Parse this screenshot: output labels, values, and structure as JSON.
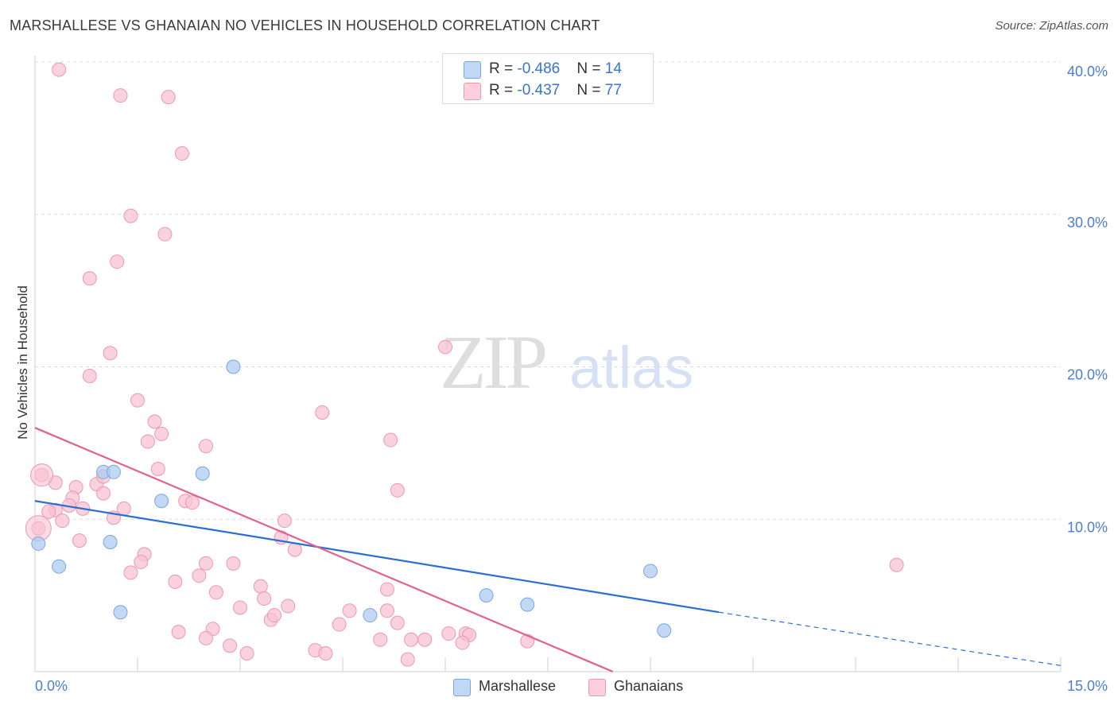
{
  "title": "MARSHALLESE VS GHANAIAN NO VEHICLES IN HOUSEHOLD CORRELATION CHART",
  "source": "Source: ZipAtlas.com",
  "watermark": {
    "zip": "ZIP",
    "atlas": "atlas"
  },
  "colors": {
    "marshallese_fill": "#aecbf2",
    "marshallese_stroke": "#7aa6e0",
    "marshallese_line": "#2a6fd0",
    "ghanaian_fill": "#f8c3d2",
    "ghanaian_stroke": "#ec98b2",
    "ghanaian_line": "#e0628e",
    "tick_text": "#4a7fd0",
    "grid": "#dddddd"
  },
  "legend": {
    "rows": [
      {
        "r_label": "R = ",
        "r_value": "-0.486",
        "n_label": "N = ",
        "n_value": "14"
      },
      {
        "r_label": "R = ",
        "r_value": "-0.437",
        "n_label": "N = ",
        "n_value": "77"
      }
    ]
  },
  "bottom_legend": {
    "marshallese": "Marshallese",
    "ghanaians": "Ghanaians"
  },
  "chart_data": {
    "type": "scatter",
    "title": "MARSHALLESE VS GHANAIAN NO VEHICLES IN HOUSEHOLD CORRELATION CHART",
    "xlabel": "",
    "ylabel": "No Vehicles in Household",
    "xlim": [
      0,
      15
    ],
    "ylim": [
      0,
      40
    ],
    "x_tick_labels": [
      "0.0%",
      "15.0%"
    ],
    "y_ticks": [
      10,
      20,
      30,
      40
    ],
    "y_tick_labels": [
      "10.0%",
      "20.0%",
      "30.0%",
      "40.0%"
    ],
    "grid": true,
    "series": [
      {
        "name": "Marshallese",
        "points": [
          [
            0.05,
            8.4
          ],
          [
            0.35,
            6.9
          ],
          [
            1.0,
            13.1
          ],
          [
            1.15,
            13.1
          ],
          [
            1.1,
            8.5
          ],
          [
            1.25,
            3.9
          ],
          [
            1.85,
            11.2
          ],
          [
            2.45,
            13.0
          ],
          [
            2.9,
            20.0
          ],
          [
            4.9,
            3.7
          ],
          [
            6.6,
            5.0
          ],
          [
            7.2,
            4.4
          ],
          [
            9.0,
            6.6
          ],
          [
            9.2,
            2.7
          ]
        ],
        "trend": {
          "x0": 0.0,
          "y0": 11.2,
          "x1": 10.0,
          "y1": 3.9,
          "dash_to_x": 15.0,
          "dash_to_y": 0.4
        }
      },
      {
        "name": "Ghanaians",
        "points": [
          [
            0.35,
            39.5
          ],
          [
            1.25,
            37.8
          ],
          [
            1.95,
            37.7
          ],
          [
            2.15,
            34.0
          ],
          [
            1.4,
            29.9
          ],
          [
            1.9,
            28.7
          ],
          [
            1.2,
            26.9
          ],
          [
            0.8,
            25.8
          ],
          [
            1.1,
            20.9
          ],
          [
            0.8,
            19.4
          ],
          [
            1.5,
            17.8
          ],
          [
            6.0,
            21.3
          ],
          [
            4.2,
            17.0
          ],
          [
            1.75,
            16.4
          ],
          [
            1.85,
            15.6
          ],
          [
            1.65,
            15.1
          ],
          [
            5.2,
            15.2
          ],
          [
            2.5,
            14.8
          ],
          [
            1.8,
            13.3
          ],
          [
            0.1,
            12.9
          ],
          [
            0.3,
            12.4
          ],
          [
            0.6,
            12.1
          ],
          [
            0.9,
            12.3
          ],
          [
            1.0,
            12.8
          ],
          [
            1.0,
            11.7
          ],
          [
            0.55,
            11.4
          ],
          [
            0.5,
            10.9
          ],
          [
            0.3,
            10.6
          ],
          [
            0.2,
            10.5
          ],
          [
            0.7,
            10.7
          ],
          [
            1.3,
            10.7
          ],
          [
            2.2,
            11.2
          ],
          [
            2.3,
            11.1
          ],
          [
            1.15,
            10.1
          ],
          [
            0.4,
            9.9
          ],
          [
            0.05,
            9.4
          ],
          [
            3.65,
            9.9
          ],
          [
            5.3,
            11.9
          ],
          [
            3.6,
            8.8
          ],
          [
            0.65,
            8.6
          ],
          [
            3.8,
            8.0
          ],
          [
            1.6,
            7.7
          ],
          [
            1.55,
            7.2
          ],
          [
            2.5,
            7.1
          ],
          [
            2.9,
            7.1
          ],
          [
            1.4,
            6.5
          ],
          [
            2.4,
            6.3
          ],
          [
            2.05,
            5.9
          ],
          [
            3.3,
            5.6
          ],
          [
            5.15,
            5.4
          ],
          [
            2.65,
            5.2
          ],
          [
            3.35,
            4.8
          ],
          [
            3.7,
            4.3
          ],
          [
            3.0,
            4.2
          ],
          [
            4.6,
            4.0
          ],
          [
            5.15,
            4.0
          ],
          [
            3.45,
            3.4
          ],
          [
            3.5,
            3.7
          ],
          [
            4.45,
            3.1
          ],
          [
            5.3,
            3.2
          ],
          [
            2.1,
            2.6
          ],
          [
            2.6,
            2.8
          ],
          [
            2.5,
            2.2
          ],
          [
            5.05,
            2.1
          ],
          [
            5.5,
            2.1
          ],
          [
            5.7,
            2.1
          ],
          [
            6.05,
            2.5
          ],
          [
            6.3,
            2.5
          ],
          [
            6.35,
            2.4
          ],
          [
            6.25,
            1.9
          ],
          [
            7.2,
            2.0
          ],
          [
            2.85,
            1.7
          ],
          [
            3.1,
            1.2
          ],
          [
            4.1,
            1.4
          ],
          [
            4.25,
            1.2
          ],
          [
            5.45,
            0.8
          ],
          [
            12.6,
            7.0
          ]
        ],
        "trend": {
          "x0": 0.0,
          "y0": 16.0,
          "x1": 8.45,
          "y1": 0.0
        }
      }
    ]
  }
}
